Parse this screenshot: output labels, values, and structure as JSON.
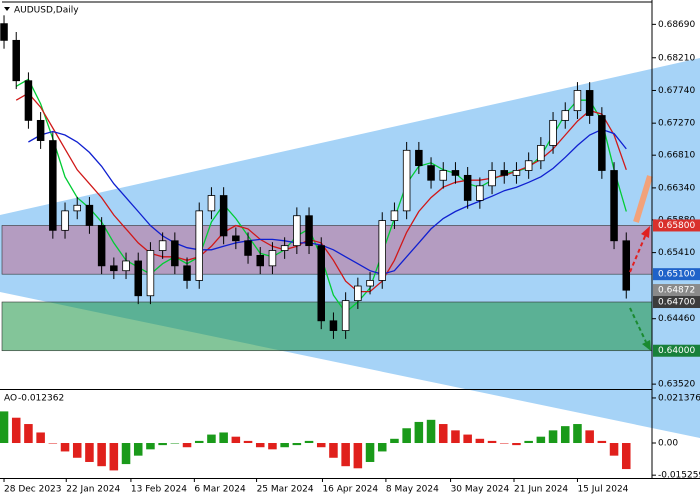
{
  "chart_data": {
    "type": "candlestick",
    "title": "AUDUSD,Daily",
    "xlim": [
      -0.33,
      53.11
    ],
    "xticks": [
      {
        "value": 0,
        "label": "28 Dec 2023"
      },
      {
        "value": 5.1,
        "label": "22 Jan 2024"
      },
      {
        "value": 10.4,
        "label": "13 Feb 2024"
      },
      {
        "value": 15.6,
        "label": "6 Mar 2024"
      },
      {
        "value": 20.7,
        "label": "25 Mar 2024"
      },
      {
        "value": 26.1,
        "label": "16 Apr 2024"
      },
      {
        "value": 31.3,
        "label": "8 May 2024"
      },
      {
        "value": 36.6,
        "label": "30 May 2024"
      },
      {
        "value": 41.8,
        "label": "21 Jun 2024"
      },
      {
        "value": 47.0,
        "label": "15 Jul 2024"
      }
    ],
    "ylim": [
      0.6345,
      0.6904
    ],
    "yticks": [
      {
        "value": 0.6869,
        "label": "0.68690"
      },
      {
        "value": 0.6821,
        "label": "0.68210"
      },
      {
        "value": 0.6774,
        "label": "0.67740"
      },
      {
        "value": 0.6727,
        "label": "0.67270"
      },
      {
        "value": 0.6681,
        "label": "0.66810"
      },
      {
        "value": 0.6634,
        "label": "0.66340"
      },
      {
        "value": 0.6588,
        "label": "0.65880"
      },
      {
        "value": 0.6541,
        "label": "0.65410"
      },
      {
        "value": 0.6446,
        "label": "0.64460"
      },
      {
        "value": 0.6352,
        "label": "0.63520"
      }
    ],
    "up_color": "#ffffff",
    "down_color": "#000000",
    "open": [
      0.687,
      0.6846,
      0.6788,
      0.6731,
      0.6702,
      0.6573,
      0.6601,
      0.6609,
      0.658,
      0.6522,
      0.6515,
      0.6529,
      0.6479,
      0.6544,
      0.6558,
      0.6522,
      0.6501,
      0.6601,
      0.6623,
      0.6565,
      0.6558,
      0.6537,
      0.6522,
      0.6544,
      0.6551,
      0.6594,
      0.6551,
      0.6443,
      0.6429,
      0.6472,
      0.6493,
      0.6501,
      0.6587,
      0.6601,
      0.6688,
      0.6666,
      0.6645,
      0.6659,
      0.6652,
      0.6616,
      0.6637,
      0.6659,
      0.6652,
      0.6659,
      0.6673,
      0.6695,
      0.6731,
      0.6745,
      0.6774,
      0.6738,
      0.6659,
      0.6558
    ],
    "high": [
      0.6882,
      0.6858,
      0.68,
      0.6743,
      0.6714,
      0.6613,
      0.6621,
      0.6621,
      0.6592,
      0.6534,
      0.6541,
      0.6541,
      0.6556,
      0.657,
      0.657,
      0.6534,
      0.6613,
      0.6635,
      0.6635,
      0.6577,
      0.657,
      0.6549,
      0.6556,
      0.6563,
      0.6606,
      0.6606,
      0.6563,
      0.6455,
      0.6484,
      0.6505,
      0.6513,
      0.6599,
      0.6613,
      0.67,
      0.67,
      0.6678,
      0.6671,
      0.6671,
      0.6664,
      0.6649,
      0.6671,
      0.6671,
      0.6671,
      0.6685,
      0.6707,
      0.6743,
      0.6757,
      0.6786,
      0.6786,
      0.675,
      0.6671,
      0.657
    ],
    "low": [
      0.6834,
      0.6776,
      0.6719,
      0.669,
      0.6561,
      0.6561,
      0.6589,
      0.6568,
      0.651,
      0.6503,
      0.6503,
      0.6467,
      0.6467,
      0.6532,
      0.651,
      0.6489,
      0.6489,
      0.6589,
      0.6553,
      0.6546,
      0.6525,
      0.651,
      0.651,
      0.6532,
      0.6539,
      0.6539,
      0.6431,
      0.6417,
      0.6417,
      0.646,
      0.6481,
      0.6489,
      0.6575,
      0.6589,
      0.6654,
      0.6633,
      0.6633,
      0.664,
      0.6604,
      0.6604,
      0.6625,
      0.664,
      0.664,
      0.6647,
      0.6661,
      0.6683,
      0.6719,
      0.6733,
      0.6726,
      0.6647,
      0.6546,
      0.6475
    ],
    "close": [
      0.6846,
      0.6788,
      0.6731,
      0.6702,
      0.6573,
      0.6601,
      0.6609,
      0.658,
      0.6522,
      0.6515,
      0.6529,
      0.6479,
      0.6544,
      0.6558,
      0.6522,
      0.6501,
      0.6601,
      0.6623,
      0.6565,
      0.6558,
      0.6537,
      0.6522,
      0.6544,
      0.6551,
      0.6594,
      0.6551,
      0.6443,
      0.6429,
      0.6472,
      0.6493,
      0.6501,
      0.6587,
      0.6601,
      0.6688,
      0.6666,
      0.6645,
      0.6659,
      0.6652,
      0.6616,
      0.6637,
      0.6659,
      0.6652,
      0.6659,
      0.6673,
      0.6695,
      0.6731,
      0.6745,
      0.6774,
      0.6738,
      0.6659,
      0.6558,
      0.6487
    ],
    "series": [
      {
        "color": "#00cc33",
        "values": [
          null,
          0.678,
          0.679,
          0.6755,
          0.6705,
          0.665,
          0.662,
          0.6605,
          0.6585,
          0.6555,
          0.653,
          0.652,
          0.651,
          0.6525,
          0.6535,
          0.6525,
          0.6535,
          0.6585,
          0.661,
          0.659,
          0.6565,
          0.654,
          0.6535,
          0.6545,
          0.6565,
          0.6575,
          0.6535,
          0.648,
          0.6455,
          0.647,
          0.649,
          0.654,
          0.659,
          0.664,
          0.6665,
          0.667,
          0.666,
          0.6655,
          0.664,
          0.6635,
          0.6645,
          0.6655,
          0.6658,
          0.6663,
          0.668,
          0.671,
          0.674,
          0.676,
          0.676,
          0.673,
          0.666,
          0.66
        ]
      },
      {
        "color": "#d01818",
        "values": [
          null,
          0.676,
          0.677,
          0.675,
          0.672,
          0.669,
          0.666,
          0.664,
          0.662,
          0.6595,
          0.6575,
          0.6555,
          0.654,
          0.6535,
          0.6535,
          0.653,
          0.6535,
          0.655,
          0.657,
          0.658,
          0.6575,
          0.656,
          0.655,
          0.6545,
          0.655,
          0.656,
          0.6555,
          0.653,
          0.65,
          0.6485,
          0.6485,
          0.65,
          0.653,
          0.657,
          0.66,
          0.662,
          0.6635,
          0.6642,
          0.6645,
          0.6645,
          0.6648,
          0.6652,
          0.6658,
          0.6665,
          0.6675,
          0.669,
          0.671,
          0.673,
          0.6745,
          0.674,
          0.671,
          0.666
        ]
      },
      {
        "color": "#1020d0",
        "values": [
          null,
          null,
          0.67,
          0.671,
          0.6715,
          0.671,
          0.67,
          0.6685,
          0.6665,
          0.664,
          0.662,
          0.66,
          0.658,
          0.6565,
          0.6555,
          0.6548,
          0.6545,
          0.6545,
          0.655,
          0.6555,
          0.6558,
          0.656,
          0.656,
          0.6558,
          0.6555,
          0.6555,
          0.6552,
          0.6545,
          0.6535,
          0.6525,
          0.6515,
          0.651,
          0.6515,
          0.6535,
          0.6555,
          0.6575,
          0.659,
          0.66,
          0.6608,
          0.6615,
          0.6622,
          0.663,
          0.6635,
          0.6642,
          0.665,
          0.6662,
          0.6678,
          0.6695,
          0.671,
          0.6718,
          0.6712,
          0.669
        ]
      }
    ],
    "zones": [
      {
        "color": "rgba(200,80,120,0.42)",
        "top": {
          "value": 0.658,
          "label": "0.65800",
          "color": "#d9302c"
        },
        "bottom": {
          "value": 0.651,
          "label": "0.65100",
          "color": "#1f62c9"
        }
      },
      {
        "color": "rgba(30,150,70,0.55)",
        "top": {
          "value": 0.647,
          "label": "0.64700",
          "color": "#3c3c3c"
        },
        "bottom": {
          "value": 0.64,
          "label": "0.64000",
          "color": "#18803a"
        }
      }
    ],
    "current_price": {
      "value": 0.64872,
      "label": "0.64872",
      "color": "#8a8a8a"
    },
    "ao": {
      "name": "AO",
      "ylim": [
        -0.0166,
        0.0242
      ],
      "yticks": [
        0.021376,
        {
          "value": 0,
          "label": "0.00"
        },
        -0.015259
      ],
      "up_color": "#1a9a1a",
      "down_color": "#e0201c",
      "values": [
        0.015,
        0.012,
        0.009,
        0.005,
        0.0,
        -0.004,
        -0.007,
        -0.009,
        -0.011,
        -0.013,
        -0.01,
        -0.006,
        -0.003,
        -0.001,
        0.0,
        -0.002,
        0.001,
        0.004,
        0.005,
        0.003,
        0.001,
        -0.002,
        -0.003,
        -0.002,
        -0.001,
        0.001,
        -0.002,
        -0.007,
        -0.011,
        -0.012,
        -0.009,
        -0.004,
        0.002,
        0.007,
        0.01,
        0.011,
        0.009,
        0.006,
        0.004,
        0.002,
        0.001,
        0.0,
        -0.001,
        0.001,
        0.003,
        0.006,
        0.008,
        0.009,
        0.006,
        0.001,
        -0.006,
        -0.012362
      ]
    }
  }
}
